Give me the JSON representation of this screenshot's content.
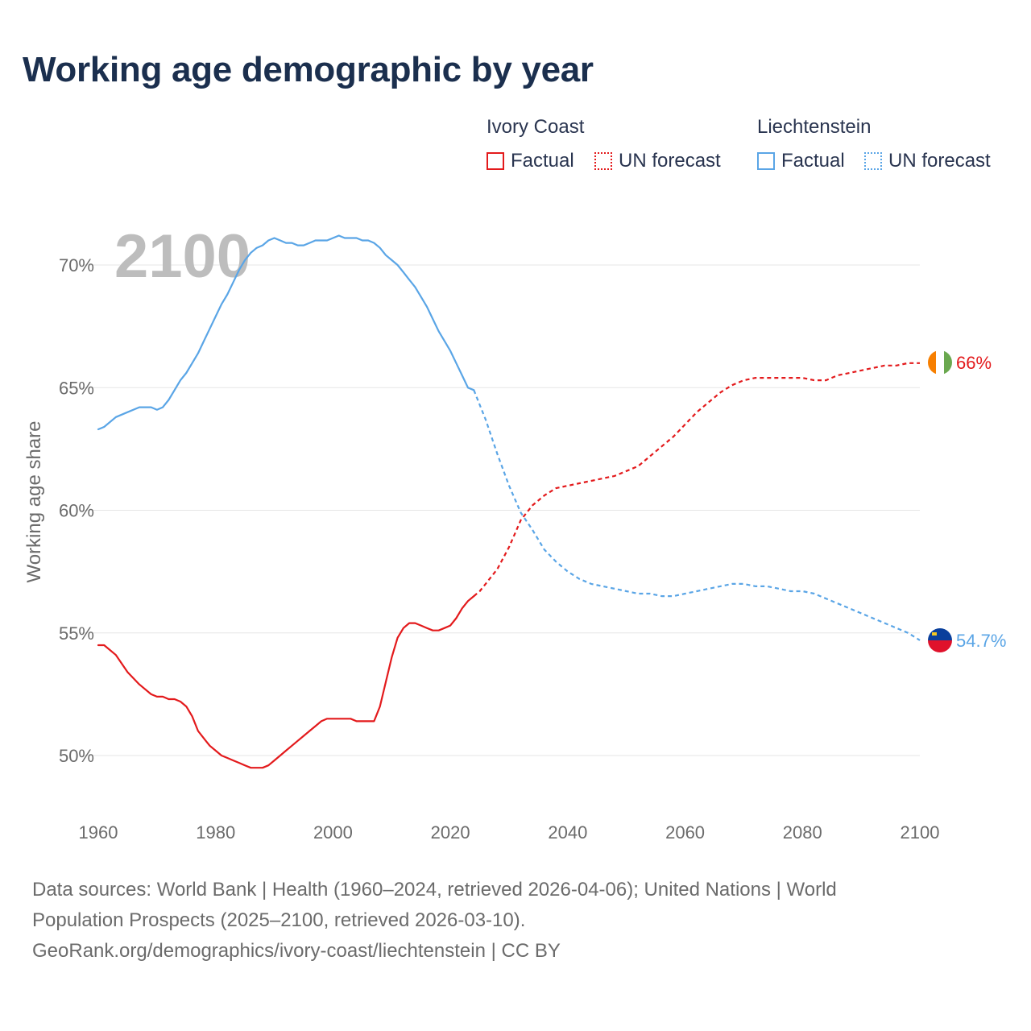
{
  "title": "Working age demographic by year",
  "legend": {
    "groups": [
      {
        "name": "Ivory Coast",
        "factual_label": "Factual",
        "forecast_label": "UN forecast",
        "color": "#e31a1c"
      },
      {
        "name": "Liechtenstein",
        "factual_label": "Factual",
        "forecast_label": "UN forecast",
        "color": "#5aa5e6"
      }
    ]
  },
  "year_watermark": "2100",
  "end_labels": {
    "ivory_coast": "66%",
    "liechtenstein": "54.7%"
  },
  "sources": {
    "line1": "Data sources: World Bank | Health (1960–2024, retrieved 2026-04-06); United Nations | World",
    "line2": "Population Prospects (2025–2100, retrieved 2026-03-10).",
    "line3": "GeoRank.org/demographics/ivory-coast/liechtenstein | CC BY"
  },
  "colors": {
    "ivory_coast": "#e31a1c",
    "liechtenstein": "#5aa5e6",
    "grid": "#e6e6e6",
    "axis_text": "#6b6b6b"
  },
  "chart_data": {
    "type": "line",
    "title": "Working age demographic by year",
    "xlabel": "",
    "ylabel": "Working age share",
    "xlim": [
      1960,
      2100
    ],
    "ylim": [
      48,
      72
    ],
    "x_ticks": [
      1960,
      1980,
      2000,
      2020,
      2040,
      2060,
      2080,
      2100
    ],
    "x_tick_labels": [
      "1960",
      "1980",
      "2000",
      "2020",
      "2040",
      "2060",
      "2080",
      "2100"
    ],
    "y_ticks": [
      50,
      55,
      60,
      65,
      70
    ],
    "y_tick_labels": [
      "50%",
      "55%",
      "60%",
      "65%",
      "70%"
    ],
    "series": [
      {
        "name": "Ivory Coast",
        "factual": {
          "x": [
            1960,
            1961,
            1963,
            1965,
            1967,
            1969,
            1970,
            1971,
            1972,
            1973,
            1974,
            1975,
            1976,
            1977,
            1978,
            1979,
            1980,
            1981,
            1982,
            1983,
            1984,
            1985,
            1986,
            1987,
            1988,
            1989,
            1990,
            1991,
            1992,
            1993,
            1994,
            1995,
            1996,
            1997,
            1998,
            1999,
            2000,
            2001,
            2002,
            2003,
            2004,
            2005,
            2006,
            2007,
            2008,
            2009,
            2010,
            2011,
            2012,
            2013,
            2014,
            2015,
            2016,
            2017,
            2018,
            2019,
            2020,
            2021,
            2022,
            2023,
            2024
          ],
          "y": [
            54.5,
            54.5,
            54.1,
            53.4,
            52.9,
            52.5,
            52.4,
            52.4,
            52.3,
            52.3,
            52.2,
            52.0,
            51.6,
            51.0,
            50.7,
            50.4,
            50.2,
            50.0,
            49.9,
            49.8,
            49.7,
            49.6,
            49.5,
            49.5,
            49.5,
            49.6,
            49.8,
            50.0,
            50.2,
            50.4,
            50.6,
            50.8,
            51.0,
            51.2,
            51.4,
            51.5,
            51.5,
            51.5,
            51.5,
            51.5,
            51.4,
            51.4,
            51.4,
            51.4,
            52.0,
            53.0,
            54.0,
            54.8,
            55.2,
            55.4,
            55.4,
            55.3,
            55.2,
            55.1,
            55.1,
            55.2,
            55.3,
            55.6,
            56.0,
            56.3,
            56.5
          ]
        },
        "forecast": {
          "x": [
            2024,
            2025,
            2026,
            2028,
            2030,
            2032,
            2034,
            2036,
            2038,
            2040,
            2042,
            2044,
            2046,
            2048,
            2050,
            2052,
            2054,
            2056,
            2058,
            2060,
            2062,
            2064,
            2066,
            2068,
            2070,
            2072,
            2074,
            2076,
            2078,
            2080,
            2082,
            2084,
            2086,
            2088,
            2090,
            2092,
            2094,
            2096,
            2098,
            2100
          ],
          "y": [
            56.5,
            56.7,
            57.0,
            57.6,
            58.5,
            59.6,
            60.2,
            60.6,
            60.9,
            61.0,
            61.1,
            61.2,
            61.3,
            61.4,
            61.6,
            61.8,
            62.2,
            62.6,
            63.0,
            63.5,
            64.0,
            64.4,
            64.8,
            65.1,
            65.3,
            65.4,
            65.4,
            65.4,
            65.4,
            65.4,
            65.3,
            65.3,
            65.5,
            65.6,
            65.7,
            65.8,
            65.9,
            65.9,
            66.0,
            66.0
          ]
        }
      },
      {
        "name": "Liechtenstein",
        "factual": {
          "x": [
            1960,
            1961,
            1963,
            1965,
            1967,
            1969,
            1970,
            1971,
            1972,
            1973,
            1974,
            1975,
            1976,
            1977,
            1978,
            1979,
            1980,
            1981,
            1982,
            1983,
            1984,
            1985,
            1986,
            1987,
            1988,
            1989,
            1990,
            1991,
            1992,
            1993,
            1994,
            1995,
            1996,
            1997,
            1998,
            1999,
            2000,
            2001,
            2002,
            2003,
            2004,
            2005,
            2006,
            2007,
            2008,
            2009,
            2010,
            2011,
            2012,
            2013,
            2014,
            2015,
            2016,
            2017,
            2018,
            2019,
            2020,
            2021,
            2022,
            2023,
            2024
          ],
          "y": [
            63.3,
            63.4,
            63.8,
            64.0,
            64.2,
            64.2,
            64.1,
            64.2,
            64.5,
            64.9,
            65.3,
            65.6,
            66.0,
            66.4,
            66.9,
            67.4,
            67.9,
            68.4,
            68.8,
            69.3,
            69.8,
            70.2,
            70.5,
            70.7,
            70.8,
            71.0,
            71.1,
            71.0,
            70.9,
            70.9,
            70.8,
            70.8,
            70.9,
            71.0,
            71.0,
            71.0,
            71.1,
            71.2,
            71.1,
            71.1,
            71.1,
            71.0,
            71.0,
            70.9,
            70.7,
            70.4,
            70.2,
            70.0,
            69.7,
            69.4,
            69.1,
            68.7,
            68.3,
            67.8,
            67.3,
            66.9,
            66.5,
            66.0,
            65.5,
            65.0,
            64.9
          ]
        },
        "forecast": {
          "x": [
            2024,
            2025,
            2026,
            2028,
            2030,
            2032,
            2034,
            2036,
            2038,
            2040,
            2042,
            2044,
            2046,
            2048,
            2050,
            2052,
            2054,
            2056,
            2058,
            2060,
            2062,
            2064,
            2066,
            2068,
            2070,
            2072,
            2074,
            2076,
            2078,
            2080,
            2082,
            2084,
            2086,
            2088,
            2090,
            2092,
            2094,
            2096,
            2098,
            2100
          ],
          "y": [
            64.9,
            64.3,
            63.7,
            62.3,
            61.0,
            59.9,
            59.2,
            58.4,
            57.9,
            57.5,
            57.2,
            57.0,
            56.9,
            56.8,
            56.7,
            56.6,
            56.6,
            56.5,
            56.5,
            56.6,
            56.7,
            56.8,
            56.9,
            57.0,
            57.0,
            56.9,
            56.9,
            56.8,
            56.7,
            56.7,
            56.6,
            56.4,
            56.2,
            56.0,
            55.8,
            55.6,
            55.4,
            55.2,
            55.0,
            54.7
          ]
        }
      }
    ]
  }
}
